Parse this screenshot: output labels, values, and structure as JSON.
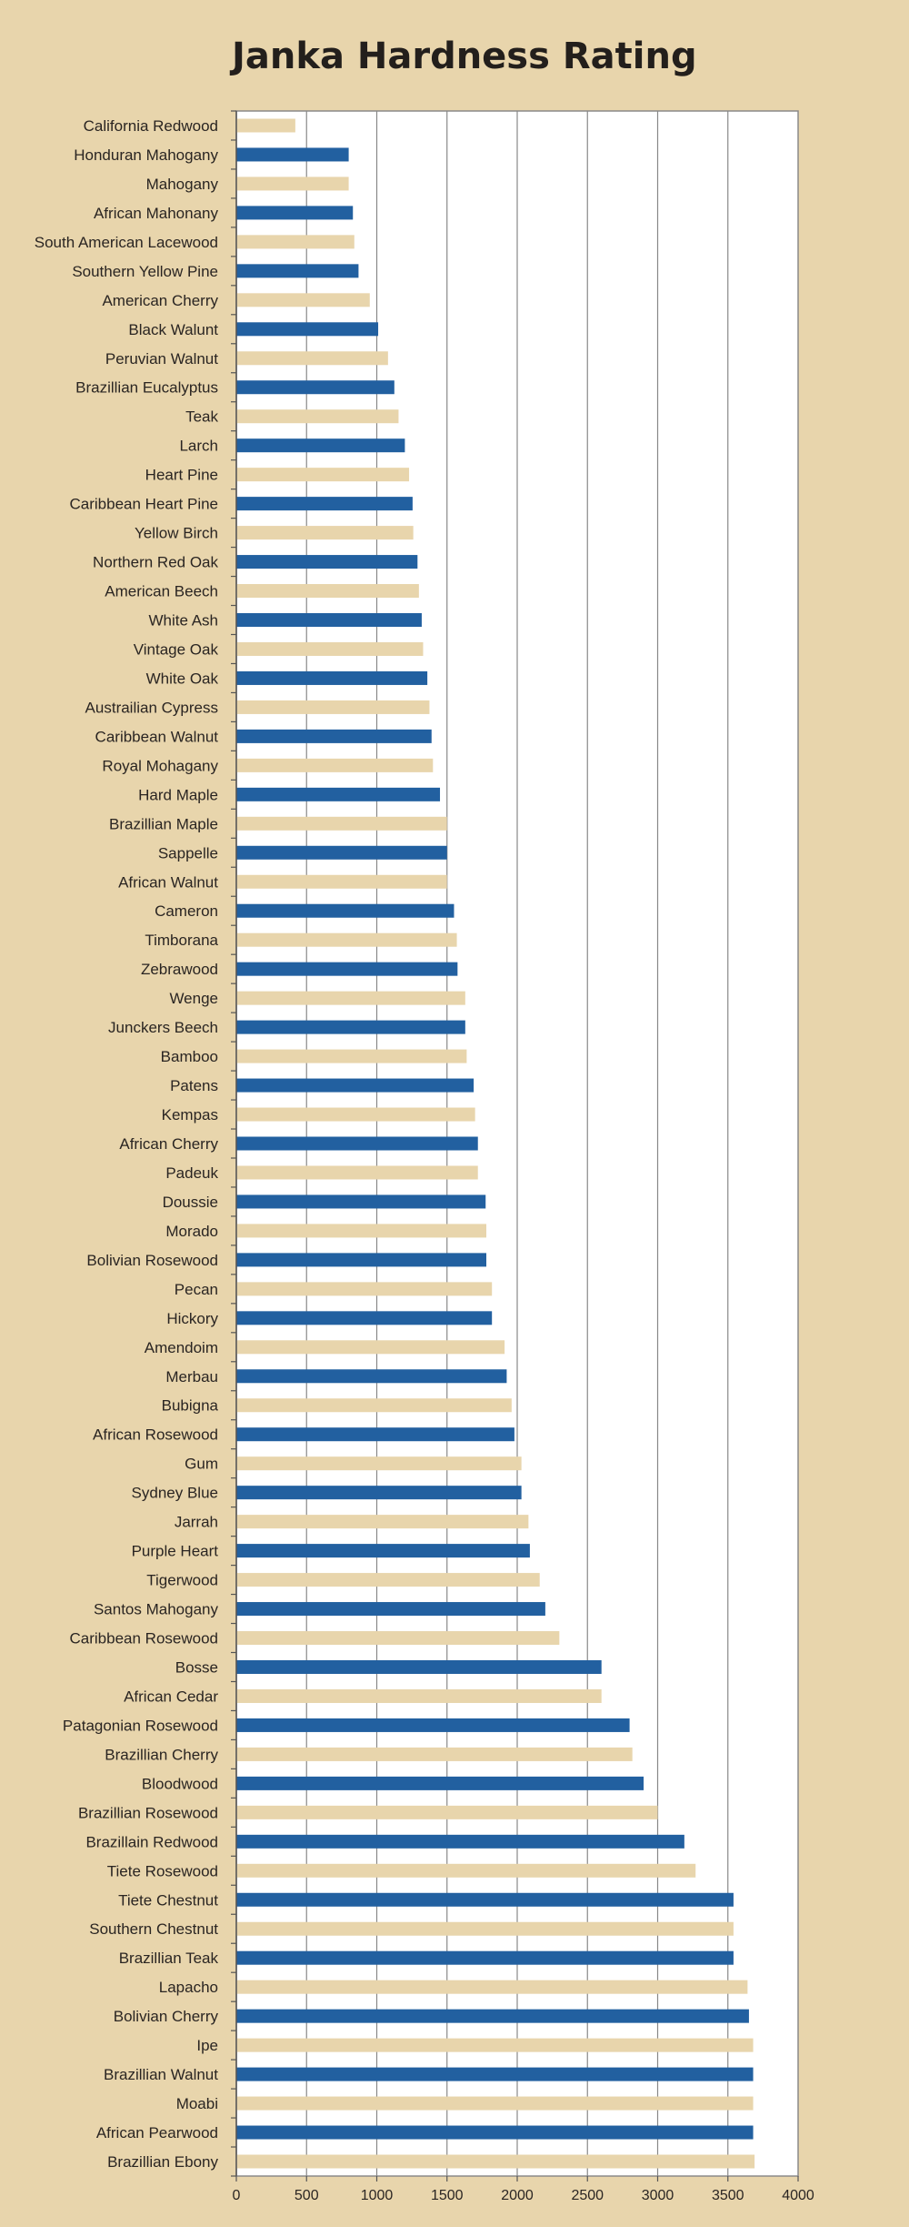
{
  "chart_data": {
    "type": "bar",
    "orientation": "horizontal",
    "title": "Janka Hardness Rating",
    "xlabel": "",
    "ylabel": "",
    "xlim": [
      0,
      4000
    ],
    "xticks": [
      0,
      500,
      1000,
      1500,
      2000,
      2500,
      3000,
      3500,
      4000
    ],
    "grid": "vertical",
    "legend": "none",
    "colors": {
      "background": "#e8d5ac",
      "plot_area": "#ffffff",
      "bar_blue": "#2260a0",
      "bar_tan": "#e8d5ac",
      "gridline": "#888888",
      "text": "#231f1c"
    },
    "bar_color_pattern": [
      "tan",
      "blue"
    ],
    "categories": [
      "California Redwood",
      "Honduran Mahogany",
      "Mahogany",
      "African Mahonany",
      "South American Lacewood",
      "Southern Yellow Pine",
      "American Cherry",
      "Black Walunt",
      "Peruvian Walnut",
      "Brazillian Eucalyptus",
      "Teak",
      "Larch",
      "Heart Pine",
      "Caribbean Heart Pine",
      "Yellow Birch",
      "Northern Red Oak",
      "American Beech",
      "White Ash",
      "Vintage Oak",
      "White Oak",
      "Austrailian Cypress",
      "Caribbean Walnut",
      "Royal Mohagany",
      "Hard Maple",
      "Brazillian Maple",
      "Sappelle",
      "African Walnut",
      "Cameron",
      "Timborana",
      "Zebrawood",
      "Wenge",
      "Junckers Beech",
      "Bamboo",
      "Patens",
      "Kempas",
      "African Cherry",
      "Padeuk",
      "Doussie",
      "Morado",
      "Bolivian Rosewood",
      "Pecan",
      "Hickory",
      "Amendoim",
      "Merbau",
      "Bubigna",
      "African Rosewood",
      "Gum",
      "Sydney Blue",
      "Jarrah",
      "Purple Heart",
      "Tigerwood",
      "Santos Mahogany",
      "Caribbean Rosewood",
      "Bosse",
      "African Cedar",
      "Patagonian Rosewood",
      "Brazillian Cherry",
      "Bloodwood",
      "Brazillian Rosewood",
      "Brazillain Redwood",
      "Tiete Rosewood",
      "Tiete Chestnut",
      "Southern Chestnut",
      "Brazillian Teak",
      "Lapacho",
      "Bolivian Cherry",
      "Ipe",
      "Brazillian Walnut",
      "Moabi",
      "African Pearwood",
      "Brazillian Ebony"
    ],
    "values": [
      420,
      800,
      800,
      830,
      840,
      870,
      950,
      1010,
      1080,
      1125,
      1155,
      1200,
      1230,
      1255,
      1260,
      1290,
      1300,
      1320,
      1330,
      1360,
      1375,
      1390,
      1400,
      1450,
      1500,
      1500,
      1500,
      1550,
      1570,
      1575,
      1630,
      1630,
      1640,
      1690,
      1700,
      1720,
      1720,
      1775,
      1780,
      1780,
      1820,
      1820,
      1910,
      1925,
      1960,
      1980,
      2030,
      2030,
      2080,
      2090,
      2160,
      2200,
      2300,
      2600,
      2600,
      2800,
      2820,
      2900,
      3000,
      3190,
      3270,
      3540,
      3540,
      3540,
      3640,
      3650,
      3680,
      3680,
      3680,
      3680,
      3690
    ]
  }
}
